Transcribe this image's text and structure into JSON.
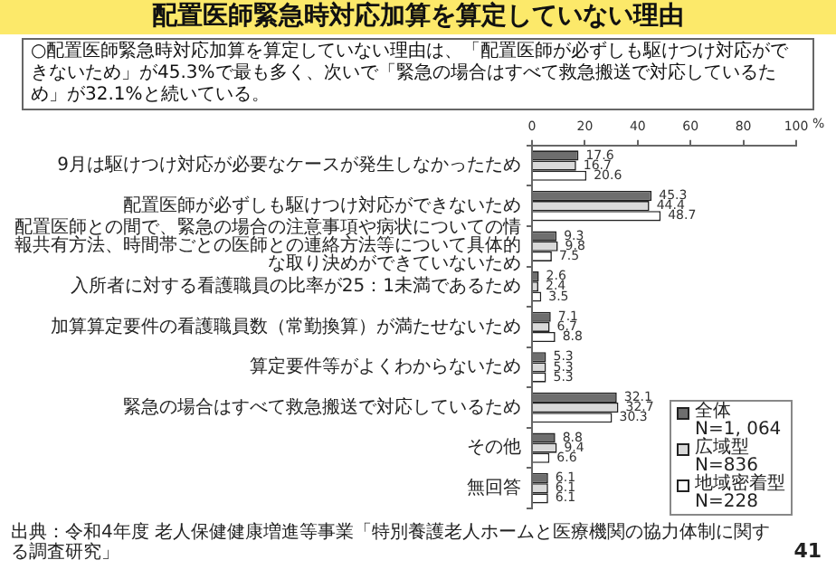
{
  "chart_data": {
    "type": "bar",
    "orientation": "horizontal",
    "title": "配置医師緊急時対応加算を算定していない理由",
    "subtitle": "○配置医師緊急時対応加算を算定していない理由は、「配置医師が必ずしも駆けつけ対応ができないため」が45.3%で最も多く、次いで「緊急の場合はすべて救急搬送で対応しているため」が32.1%と続いている。",
    "categories": [
      "9月は駆けつけ対応が必要なケースが発生しなかったため",
      "配置医師が必ずしも駆けつけ対応ができないため",
      "配置医師との間で、緊急の場合の注意事項や病状についての情報共有方法、時間帯ごとの医師との連絡方法等について具体的な取り決めができていないため",
      "入所者に対する看護職員の比率が25：1未満であるため",
      "加算算定要件の看護職員数（常勤換算）が満たせないため",
      "算定要件等がよくわからないため",
      "緊急の場合はすべて救急搬送で対応しているため",
      "その他",
      "無回答"
    ],
    "series": [
      {
        "name": "全体\nN=1, 064",
        "color": "#6e6e6e",
        "values": [
          17.6,
          45.3,
          9.3,
          2.6,
          7.1,
          5.3,
          32.1,
          8.8,
          6.1
        ]
      },
      {
        "name": "広域型\nN=836",
        "color": "#d9d9d9",
        "values": [
          16.7,
          44.4,
          9.8,
          2.4,
          6.7,
          5.3,
          32.7,
          9.4,
          6.1
        ]
      },
      {
        "name": "地域密着型\nN=228",
        "color": "#ffffff",
        "values": [
          20.6,
          48.7,
          7.5,
          3.5,
          8.8,
          5.3,
          30.3,
          6.6,
          6.1
        ]
      }
    ],
    "xlabel": "%",
    "xlim": [
      0,
      100
    ],
    "xticks": [
      0,
      20,
      40,
      60,
      80,
      100
    ],
    "grid": false,
    "legend": "bottom right",
    "data_labels": true,
    "annotations": [
      "出典：令和4年度 老人保健健康増進等事業「特別養護老人ホームと医療機関の協力体制に関する調査研究」",
      "41"
    ]
  }
}
